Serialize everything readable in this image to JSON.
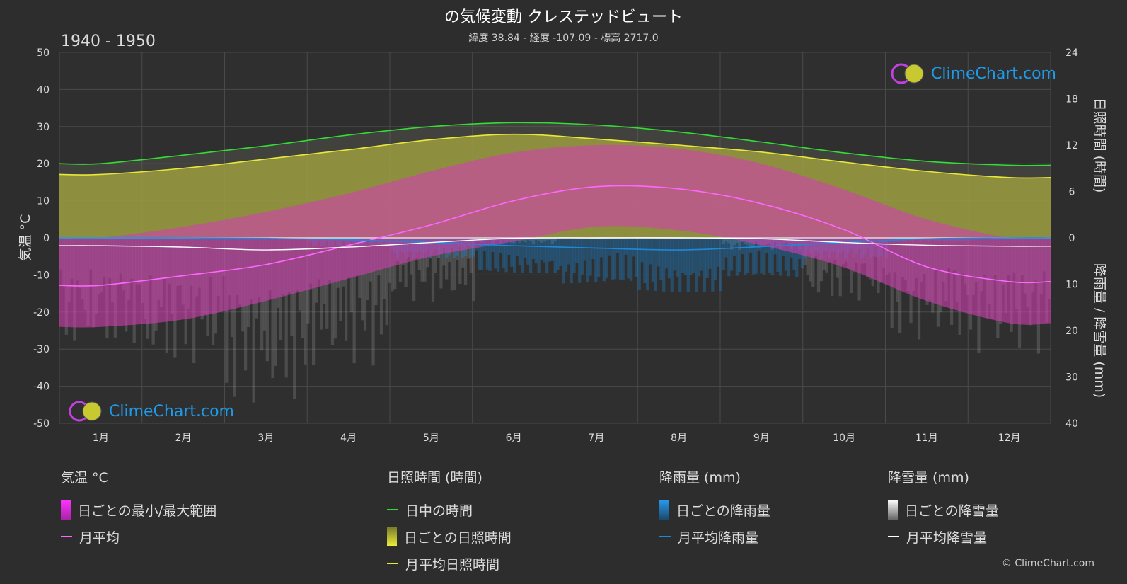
{
  "title": "の気候変動 クレステッドビュート",
  "subtitle": "緯度 38.84 - 経度 -107.09 - 標高 2717.0",
  "period": "1940 - 1950",
  "logo_text": "ClimeChart.com",
  "copyright": "© ClimeChart.com",
  "legend": {
    "temp": {
      "head": "気温 °C",
      "range": "日ごとの最小/最大範囲",
      "avg": "月平均"
    },
    "sun": {
      "head": "日照時間 (時間)",
      "daylight": "日中の時間",
      "daily": "日ごとの日照時間",
      "avg": "月平均日照時間"
    },
    "rain": {
      "head": "降雨量 (mm)",
      "daily": "日ごとの降雨量",
      "avg": "月平均降雨量"
    },
    "snow": {
      "head": "降雪量 (mm)",
      "daily": "日ごとの降雪量",
      "avg": "月平均降雪量"
    }
  },
  "colors": {
    "background": "#2d2d2d",
    "daylight": "#33dd33",
    "sunshine": "#e8e83a",
    "sunshine_fill": "#a8a832",
    "temp_range": "#d040b0",
    "temp_avg": "#ff66ff",
    "rain": "#1e88d8",
    "snow": "#ffffff",
    "logo": "#1e9be8"
  },
  "chart_data": {
    "type": "area",
    "months": [
      "1月",
      "2月",
      "3月",
      "4月",
      "5月",
      "6月",
      "7月",
      "8月",
      "9月",
      "10月",
      "11月",
      "12月"
    ],
    "y_left": {
      "label": "気温 °C",
      "range": [
        -50,
        50
      ],
      "ticks": [
        50,
        40,
        30,
        20,
        10,
        0,
        -10,
        -20,
        -30,
        -40,
        -50
      ]
    },
    "y_right_top": {
      "label": "日照時間 (時間)",
      "range": [
        0,
        24
      ],
      "ticks": [
        24,
        18,
        12,
        6,
        0
      ]
    },
    "y_right_bottom": {
      "label": "降雨量 / 降雪量 (mm)",
      "range": [
        0,
        40
      ],
      "ticks": [
        0,
        10,
        20,
        30,
        40
      ]
    },
    "grid": true,
    "series": [
      {
        "name": "日中の時間",
        "unit": "hours",
        "values": [
          9.6,
          10.7,
          11.9,
          13.3,
          14.4,
          14.9,
          14.6,
          13.7,
          12.4,
          11.0,
          9.9,
          9.4
        ]
      },
      {
        "name": "月平均日照時間",
        "unit": "hours",
        "values": [
          8.2,
          9.0,
          10.2,
          11.4,
          12.7,
          13.4,
          12.8,
          12.0,
          11.1,
          9.8,
          8.6,
          7.8
        ]
      },
      {
        "name": "日ごとの最小/最大範囲",
        "unit": "°C",
        "min": [
          -24,
          -22,
          -17,
          -11,
          -5,
          -1,
          3,
          2,
          -2,
          -8,
          -17,
          -23
        ],
        "max": [
          0,
          3,
          7,
          12,
          18,
          23,
          25,
          24,
          20,
          13,
          5,
          0
        ]
      },
      {
        "name": "月平均",
        "unit": "°C",
        "values": [
          -12.8,
          -10.2,
          -7.2,
          -2.0,
          3.5,
          10.0,
          13.8,
          13.2,
          9.2,
          2.2,
          -7.8,
          -11.8
        ]
      },
      {
        "name": "月平均降雨量",
        "unit": "mm",
        "values": [
          0.0,
          0.0,
          0.1,
          0.4,
          1.0,
          1.7,
          2.2,
          2.6,
          1.9,
          1.0,
          0.2,
          0.0
        ]
      },
      {
        "name": "月平均降雪量",
        "unit": "mm",
        "values": [
          1.7,
          2.0,
          2.6,
          2.0,
          1.0,
          0.1,
          0.0,
          0.0,
          0.2,
          1.0,
          1.6,
          1.8
        ]
      }
    ]
  }
}
